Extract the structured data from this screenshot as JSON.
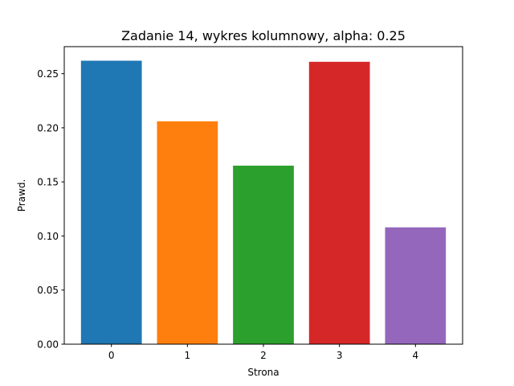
{
  "chart_data": {
    "type": "bar",
    "title": "Zadanie 14, wykres kolumnowy, alpha: 0.25",
    "xlabel": "Strona",
    "ylabel": "Prawd.",
    "categories": [
      "0",
      "1",
      "2",
      "3",
      "4"
    ],
    "values": [
      0.262,
      0.206,
      0.165,
      0.261,
      0.108
    ],
    "colors": [
      "#1f77b4",
      "#ff7f0e",
      "#2ca02c",
      "#d62728",
      "#9467bd"
    ],
    "ylim": [
      0,
      0.275
    ],
    "xlim": [
      -0.62,
      4.62
    ],
    "yticks": [
      0.0,
      0.05,
      0.1,
      0.15,
      0.2,
      0.25
    ],
    "ytick_labels": [
      "0.00",
      "0.05",
      "0.10",
      "0.15",
      "0.20",
      "0.25"
    ],
    "grid": false,
    "legend": "none"
  }
}
